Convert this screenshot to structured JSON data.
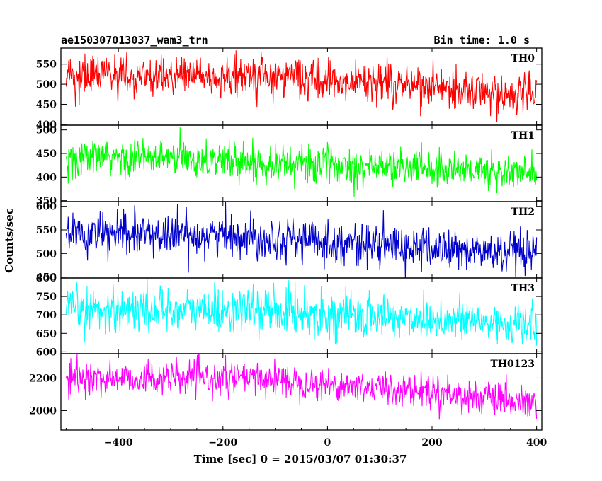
{
  "header": {
    "title": "ae150307013037_wam3_trn",
    "bin_time": "Bin time: 1.0 s"
  },
  "chart_data": {
    "type": "line",
    "xlabel": "Time [sec] 0 = 2015/03/07 01:30:37",
    "ylabel": "Counts/sec",
    "xlim": [
      -510,
      410
    ],
    "xticks": [
      -400,
      -200,
      0,
      200,
      400
    ],
    "xtick_labels": [
      "−400",
      "−200",
      "0",
      "200",
      "400"
    ],
    "x_start": -500,
    "x_end": 400,
    "x_step": 1,
    "panels": [
      {
        "name": "TH0",
        "color": "#ff0000",
        "ylim": [
          398,
          590
        ],
        "yticks": [
          400,
          450,
          500,
          550
        ],
        "trend": [
          {
            "x": -500,
            "y": 520
          },
          {
            "x": -100,
            "y": 518
          },
          {
            "x": 0,
            "y": 510
          },
          {
            "x": 200,
            "y": 495
          },
          {
            "x": 400,
            "y": 470
          }
        ],
        "noise": 25
      },
      {
        "name": "TH1",
        "color": "#00ff00",
        "ylim": [
          348,
          510
        ],
        "yticks": [
          350,
          400,
          450,
          500
        ],
        "trend": [
          {
            "x": -500,
            "y": 440
          },
          {
            "x": -300,
            "y": 440
          },
          {
            "x": 0,
            "y": 425
          },
          {
            "x": 200,
            "y": 420
          },
          {
            "x": 400,
            "y": 405
          }
        ],
        "noise": 20
      },
      {
        "name": "TH2",
        "color": "#0000cc",
        "ylim": [
          448,
          610
        ],
        "yticks": [
          450,
          500,
          550,
          600
        ],
        "trend": [
          {
            "x": -500,
            "y": 540
          },
          {
            "x": -200,
            "y": 540
          },
          {
            "x": 0,
            "y": 525
          },
          {
            "x": 200,
            "y": 510
          },
          {
            "x": 400,
            "y": 495
          }
        ],
        "noise": 22
      },
      {
        "name": "TH3",
        "color": "#00ffff",
        "ylim": [
          595,
          800
        ],
        "yticks": [
          600,
          650,
          700,
          750,
          800
        ],
        "trend": [
          {
            "x": -500,
            "y": 715
          },
          {
            "x": -100,
            "y": 712
          },
          {
            "x": 0,
            "y": 700
          },
          {
            "x": 200,
            "y": 690
          },
          {
            "x": 400,
            "y": 670
          }
        ],
        "noise": 30
      },
      {
        "name": "TH0123",
        "color": "#ff00ff",
        "ylim": [
          1880,
          2350
        ],
        "yticks": [
          2000,
          2200
        ],
        "trend": [
          {
            "x": -500,
            "y": 2200
          },
          {
            "x": -100,
            "y": 2195
          },
          {
            "x": 0,
            "y": 2160
          },
          {
            "x": 200,
            "y": 2120
          },
          {
            "x": 400,
            "y": 2030
          }
        ],
        "noise": 50
      }
    ]
  }
}
